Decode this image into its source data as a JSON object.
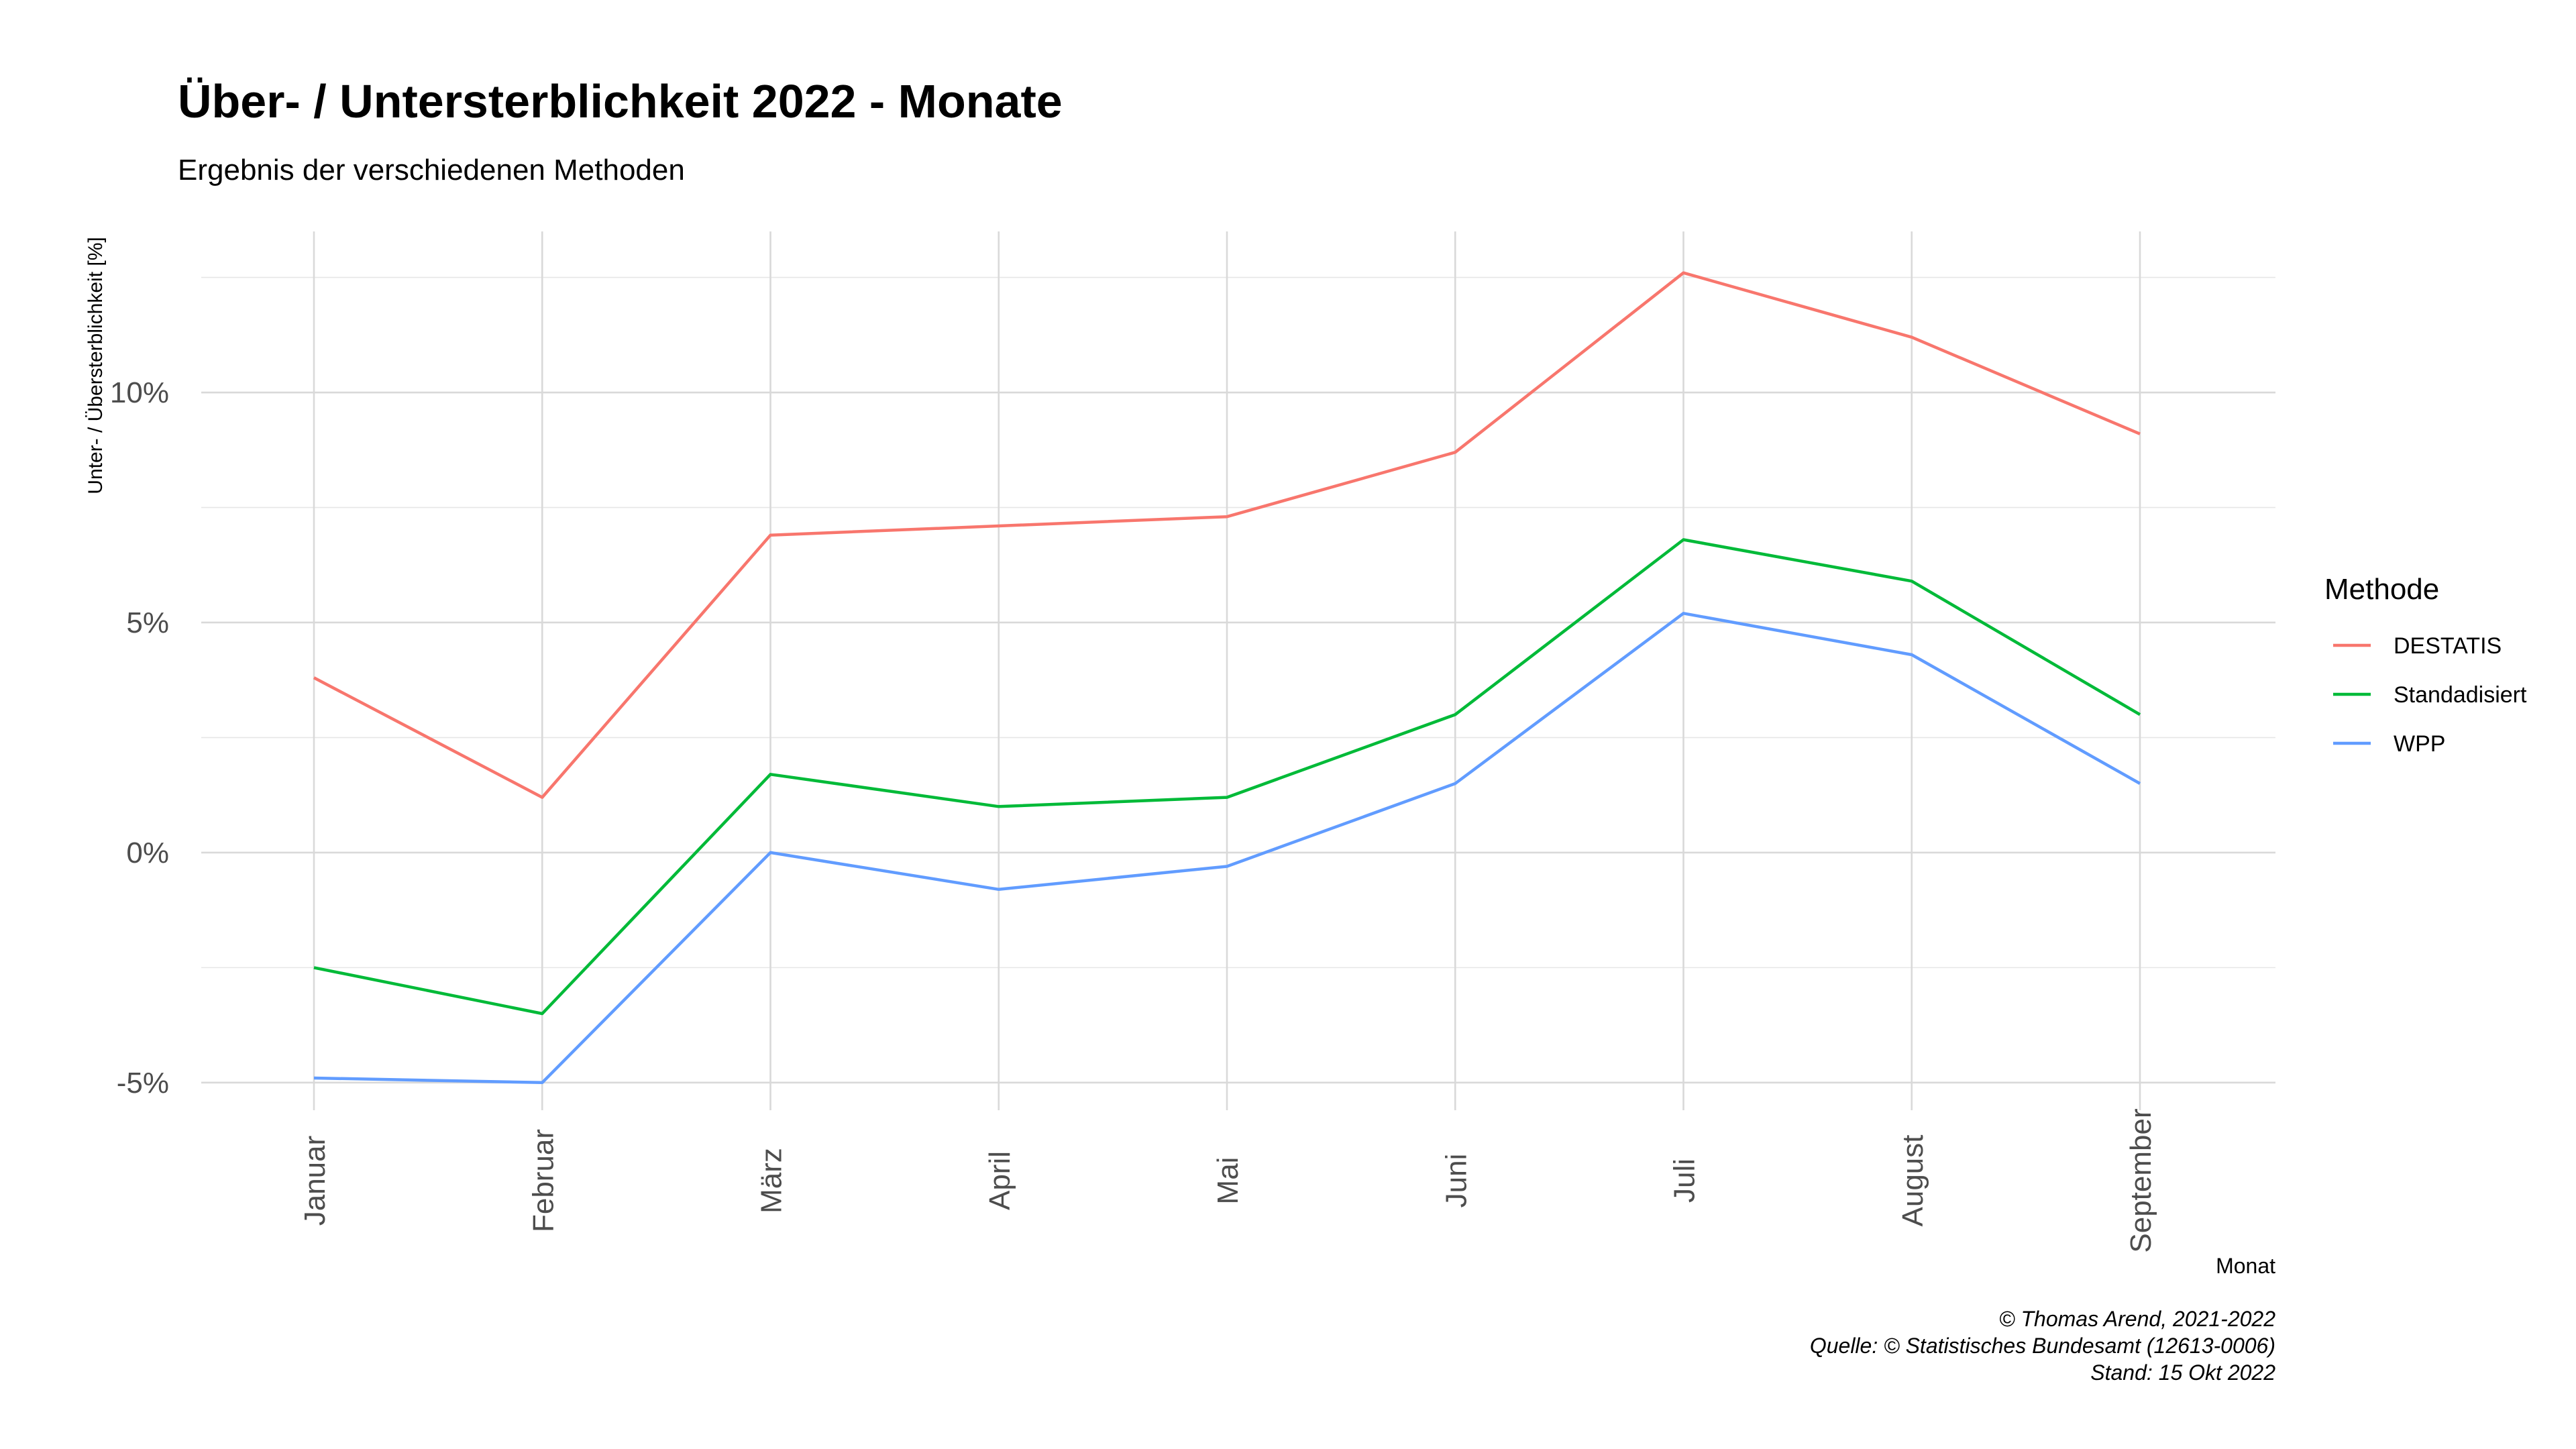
{
  "chart_data": {
    "type": "line",
    "title": "Über- / Untersterblichkeit 2022 - Monate",
    "subtitle": "Ergebnis der verschiedenen Methoden",
    "xlabel": "Monat",
    "ylabel": "Unter- / Übersterblichkeit [%]",
    "categories": [
      "Januar",
      "Februar",
      "März",
      "April",
      "Mai",
      "Juni",
      "Juli",
      "August",
      "September"
    ],
    "ylim": [
      -5.6,
      13.5
    ],
    "yticks": [
      -5,
      0,
      5,
      10
    ],
    "ytick_labels": [
      "-5%",
      "0%",
      "5%",
      "10%"
    ],
    "grid": true,
    "legend": {
      "title": "Methode",
      "position": "right"
    },
    "series": [
      {
        "name": "DESTATIS",
        "color": "#F8766D",
        "values": [
          3.8,
          1.2,
          6.9,
          7.1,
          7.3,
          8.7,
          12.6,
          11.2,
          9.1
        ]
      },
      {
        "name": "Standadisiert",
        "color": "#00BA38",
        "values": [
          -2.5,
          -3.5,
          1.7,
          1.0,
          1.2,
          3.0,
          6.8,
          5.9,
          3.0
        ]
      },
      {
        "name": "WPP",
        "color": "#619CFF",
        "values": [
          -4.9,
          -5.0,
          0.0,
          -0.8,
          -0.3,
          1.5,
          5.2,
          4.3,
          1.5
        ]
      }
    ],
    "caption": [
      "© Thomas Arend, 2021-2022",
      "Quelle: © Statistisches Bundesamt (12613-0006)",
      "Stand: 15 Okt 2022"
    ]
  }
}
